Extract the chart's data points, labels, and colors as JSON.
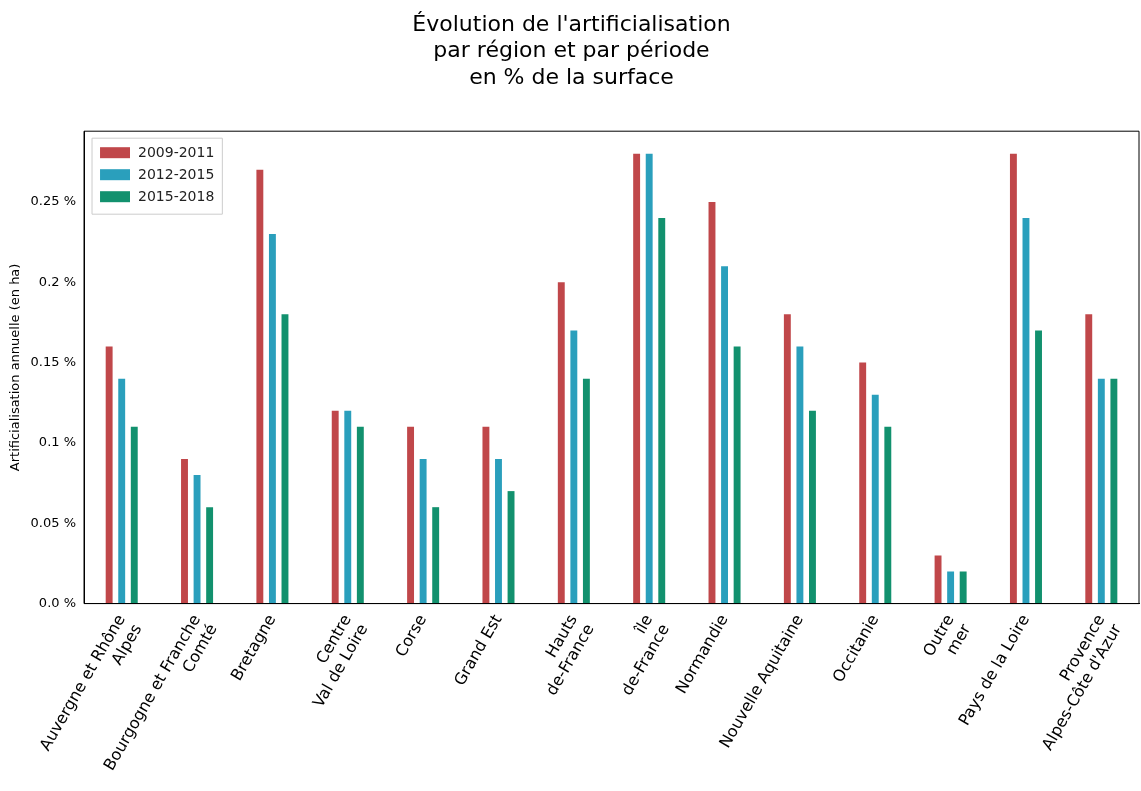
{
  "chart_data": {
    "type": "bar",
    "title": "Évolution de l'artificialisation\npar région et par période\nen % de la surface",
    "ylabel": "Artificialisation annuelle (en ha)",
    "categories": [
      "Auvergne et Rhône\nAlpes",
      "Bourgogne et Franche\nComté",
      "Bretagne",
      "Centre\nVal de Loire",
      "Corse",
      "Grand Est",
      "Hauts\nde-France",
      "île\nde-France",
      "Normandie",
      "Nouvelle Aquitaine",
      "Occitanie",
      "Outre\nmer",
      "Pays de la Loire",
      "Provence\nAlpes-Côte d'Azur"
    ],
    "series": [
      {
        "name": "2009-2011",
        "color": "#c0474a",
        "values": [
          0.16,
          0.09,
          0.27,
          0.12,
          0.11,
          0.11,
          0.2,
          0.28,
          0.25,
          0.18,
          0.15,
          0.03,
          0.28,
          0.18
        ]
      },
      {
        "name": "2012-2015",
        "color": "#2a9fbc",
        "values": [
          0.14,
          0.08,
          0.23,
          0.12,
          0.09,
          0.09,
          0.17,
          0.28,
          0.21,
          0.16,
          0.13,
          0.02,
          0.24,
          0.14
        ]
      },
      {
        "name": "2015-2018",
        "color": "#12916e",
        "values": [
          0.11,
          0.06,
          0.18,
          0.11,
          0.06,
          0.07,
          0.14,
          0.24,
          0.16,
          0.12,
          0.11,
          0.02,
          0.17,
          0.14
        ]
      }
    ],
    "ylim": [
      0,
      0.294
    ],
    "yticks": [
      {
        "value": 0,
        "label": "0.0 %"
      },
      {
        "value": 0.05,
        "label": "0.05 %"
      },
      {
        "value": 0.1,
        "label": "0.1 %"
      },
      {
        "value": 0.15,
        "label": "0.15 %"
      },
      {
        "value": 0.2,
        "label": "0.2 %"
      },
      {
        "value": 0.25,
        "label": "0.25 %"
      }
    ],
    "grid": false,
    "legend": "top left"
  }
}
